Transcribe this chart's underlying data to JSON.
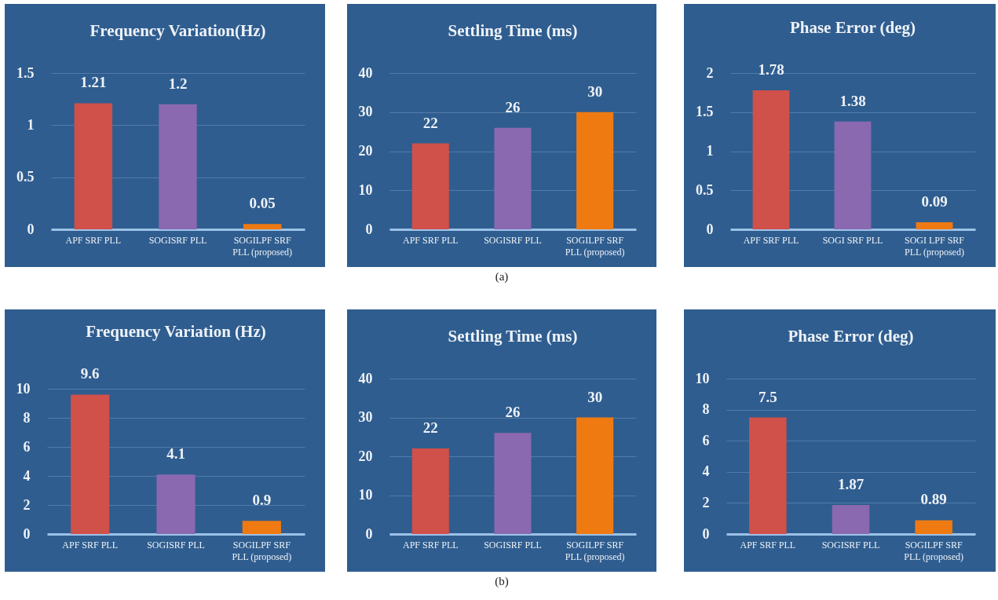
{
  "chart_data": [
    {
      "type": "bar",
      "title": "Frequency Variation(Hz)",
      "categories": [
        "APF SRF PLL",
        "SOGISRF PLL",
        "SOGILPF SRF PLL (proposed)"
      ],
      "values": [
        1.21,
        1.2,
        0.05
      ],
      "colors": [
        "#d0504a",
        "#8a69b0",
        "#ef7a12"
      ],
      "ylim": [
        0,
        1.5
      ],
      "yticks": [
        0,
        0.5,
        1,
        1.5
      ],
      "grid": "y",
      "data_labels": true
    },
    {
      "type": "bar",
      "title": "Settling Time (ms)",
      "categories": [
        "APF SRF PLL",
        "SOGISRF PLL",
        "SOGILPF SRF PLL (proposed)"
      ],
      "values": [
        22,
        26,
        30
      ],
      "colors": [
        "#d0504a",
        "#8a69b0",
        "#ef7a12"
      ],
      "ylim": [
        0,
        40
      ],
      "yticks": [
        0,
        10,
        20,
        30,
        40
      ],
      "grid": "y",
      "data_labels": true,
      "annotations": [
        "(a)"
      ]
    },
    {
      "type": "bar",
      "title": "Phase Error (deg)",
      "categories": [
        "APF SRF PLL",
        "SOGI SRF PLL",
        "SOGI LPF SRF PLL (proposed)"
      ],
      "values": [
        1.78,
        1.38,
        0.09
      ],
      "colors": [
        "#d0504a",
        "#8a69b0",
        "#ef7a12"
      ],
      "ylim": [
        0,
        2
      ],
      "yticks": [
        0,
        0.5,
        1,
        1.5,
        2
      ],
      "grid": "y",
      "data_labels": true
    },
    {
      "type": "bar",
      "title": "Frequency Variation (Hz)",
      "categories": [
        "APF SRF PLL",
        "SOGISRF PLL",
        "SOGILPF SRF PLL (proposed)"
      ],
      "values": [
        9.6,
        4.1,
        0.9
      ],
      "colors": [
        "#d0504a",
        "#8a69b0",
        "#ef7a12"
      ],
      "ylim": [
        0,
        10
      ],
      "yticks": [
        0,
        2,
        4,
        6,
        8,
        10
      ],
      "grid": "y",
      "data_labels": true
    },
    {
      "type": "bar",
      "title": "Settling Time (ms)",
      "categories": [
        "APF SRF PLL",
        "SOGISRF PLL",
        "SOGILPF SRF PLL (proposed)"
      ],
      "values": [
        22,
        26,
        30
      ],
      "colors": [
        "#d0504a",
        "#8a69b0",
        "#ef7a12"
      ],
      "ylim": [
        0,
        40
      ],
      "yticks": [
        0,
        10,
        20,
        30,
        40
      ],
      "grid": "y",
      "data_labels": true,
      "annotations": [
        "(b)"
      ]
    },
    {
      "type": "bar",
      "title": "Phase Error (deg)",
      "categories": [
        "APF SRF PLL",
        "SOGISRF PLL",
        "SOGILPF SRF PLL (proposed)"
      ],
      "values": [
        7.5,
        1.87,
        0.89
      ],
      "colors": [
        "#d0504a",
        "#8a69b0",
        "#ef7a12"
      ],
      "ylim": [
        0,
        10
      ],
      "yticks": [
        0,
        2,
        4,
        6,
        8,
        10
      ],
      "grid": "y",
      "data_labels": true
    }
  ]
}
